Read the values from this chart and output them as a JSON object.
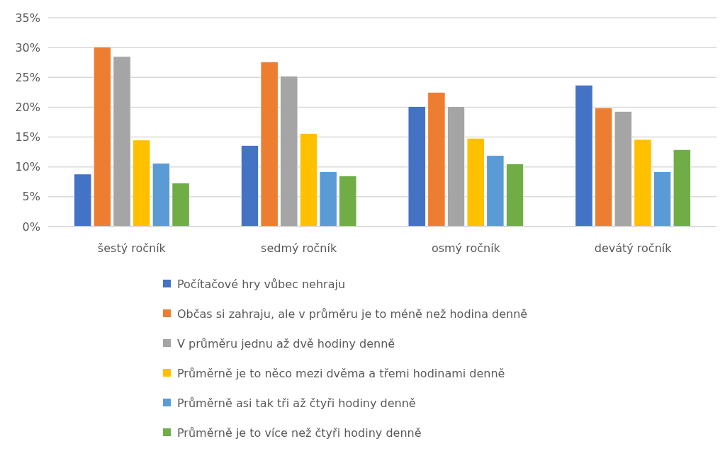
{
  "chart_data": {
    "type": "bar",
    "categories": [
      "šestý ročník",
      "sedmý ročník",
      "osmý ročník",
      "devátý ročník"
    ],
    "series": [
      {
        "name": "Počítačové hry vůbec nehraju",
        "color": "#4472c4",
        "values": [
          8.8,
          13.6,
          20.1,
          23.7
        ]
      },
      {
        "name": "Občas si zahraju, ale v průměru je to méně než hodina denně",
        "color": "#ed7d31",
        "values": [
          30.1,
          27.6,
          22.5,
          19.9
        ]
      },
      {
        "name": "V průměru jednu až dvě hodiny denně",
        "color": "#a5a5a5",
        "values": [
          28.5,
          25.2,
          20.1,
          19.3
        ]
      },
      {
        "name": "Průměrně je to něco mezi dvěma a třemi hodinami denně",
        "color": "#ffc000",
        "values": [
          14.5,
          15.6,
          14.8,
          14.6
        ]
      },
      {
        "name": "Průměrně asi tak tři až čtyři hodiny denně",
        "color": "#5b9bd5",
        "values": [
          10.6,
          9.2,
          11.9,
          9.2
        ]
      },
      {
        "name": "Průměrně je to více než čtyři hodiny denně",
        "color": "#70ad47",
        "values": [
          7.3,
          8.5,
          10.5,
          12.9
        ]
      }
    ],
    "ylim": [
      0,
      35
    ],
    "yticks": [
      {
        "value": 0,
        "label": "0%"
      },
      {
        "value": 5,
        "label": "5%"
      },
      {
        "value": 10,
        "label": "10%"
      },
      {
        "value": 15,
        "label": "15%"
      },
      {
        "value": 20,
        "label": "20%"
      },
      {
        "value": 25,
        "label": "25%"
      },
      {
        "value": 30,
        "label": "30%"
      },
      {
        "value": 35,
        "label": "35%"
      }
    ],
    "grid": "y",
    "legend": "bottom"
  }
}
